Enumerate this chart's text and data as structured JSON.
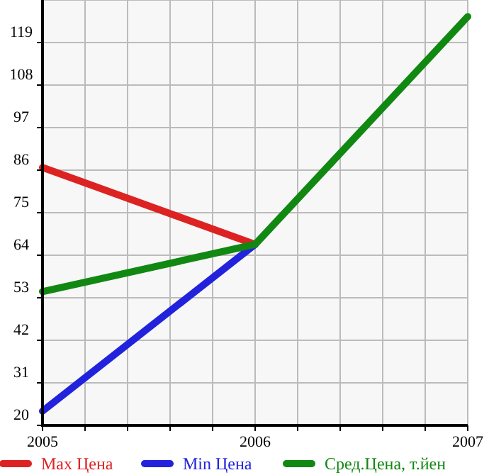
{
  "chart_data": {
    "type": "line",
    "x": [
      2005,
      2006,
      2007
    ],
    "series": [
      {
        "name": "Max Цена",
        "color": "#dd2222",
        "values": [
          86.7,
          66.8,
          null
        ]
      },
      {
        "name": "Min Цена",
        "color": "#2222dd",
        "values": [
          23.7,
          66.8,
          null
        ]
      },
      {
        "name": "Сред.Цена, т.йен",
        "color": "#118811",
        "values": [
          54.6,
          66.8,
          125.7
        ]
      }
    ],
    "xlim": [
      2005,
      2007
    ],
    "xticks": [
      2005,
      {
        "value": 2005.2,
        "label": null
      },
      {
        "value": 2005.4,
        "label": null
      },
      {
        "value": 2005.6,
        "label": null
      },
      {
        "value": 2005.8,
        "label": null
      },
      2006,
      {
        "value": 2006.2,
        "label": null
      },
      {
        "value": 2006.4,
        "label": null
      },
      {
        "value": 2006.6,
        "label": null
      },
      {
        "value": 2006.8,
        "label": null
      },
      2007
    ],
    "ylim": [
      20,
      130
    ],
    "yticks": [
      20,
      31,
      42,
      53,
      64,
      75,
      86,
      97,
      108,
      119
    ],
    "grid": true,
    "legend": "bottom",
    "marker": "none",
    "line_style": "solid"
  }
}
